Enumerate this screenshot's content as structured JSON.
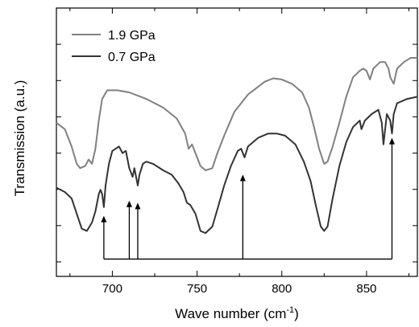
{
  "chart_data": {
    "type": "line",
    "xlabel": "Wave number (cm",
    "xlabel_sup": "-1",
    "xlabel_end": ")",
    "ylabel": "Transmission (a.u.)",
    "xlim": [
      667,
      880
    ],
    "ylim": [
      0,
      1
    ],
    "x_ticks": [
      700,
      750,
      800,
      850
    ],
    "x_tick_labels": [
      "700",
      "750",
      "800",
      "850"
    ],
    "y_ticks_unlabeled": true,
    "legend_position": "top-left",
    "series": [
      {
        "name": "1.9 GPa",
        "color": "#808080",
        "points": [
          [
            667,
            0.55
          ],
          [
            672,
            0.52
          ],
          [
            676,
            0.44
          ],
          [
            679,
            0.36
          ],
          [
            681,
            0.34
          ],
          [
            684,
            0.35
          ],
          [
            686,
            0.38
          ],
          [
            688,
            0.36
          ],
          [
            690,
            0.43
          ],
          [
            692,
            0.56
          ],
          [
            694,
            0.66
          ],
          [
            697,
            0.7
          ],
          [
            703,
            0.7
          ],
          [
            710,
            0.69
          ],
          [
            720,
            0.66
          ],
          [
            730,
            0.62
          ],
          [
            738,
            0.57
          ],
          [
            743,
            0.5
          ],
          [
            745,
            0.43
          ],
          [
            747,
            0.45
          ],
          [
            749,
            0.41
          ],
          [
            752,
            0.35
          ],
          [
            755,
            0.33
          ],
          [
            759,
            0.34
          ],
          [
            762,
            0.41
          ],
          [
            766,
            0.49
          ],
          [
            772,
            0.6
          ],
          [
            780,
            0.68
          ],
          [
            790,
            0.74
          ],
          [
            795,
            0.755
          ],
          [
            800,
            0.75
          ],
          [
            806,
            0.73
          ],
          [
            812,
            0.69
          ],
          [
            816,
            0.62
          ],
          [
            819,
            0.53
          ],
          [
            822,
            0.43
          ],
          [
            825,
            0.36
          ],
          [
            827,
            0.37
          ],
          [
            830,
            0.44
          ],
          [
            834,
            0.55
          ],
          [
            838,
            0.67
          ],
          [
            842,
            0.76
          ],
          [
            846,
            0.79
          ],
          [
            848,
            0.8
          ],
          [
            850,
            0.79
          ],
          [
            852,
            0.75
          ],
          [
            854,
            0.8
          ],
          [
            858,
            0.83
          ],
          [
            861,
            0.83
          ],
          [
            863,
            0.8
          ],
          [
            864,
            0.76
          ],
          [
            866,
            0.73
          ],
          [
            868,
            0.8
          ],
          [
            872,
            0.83
          ],
          [
            876,
            0.85
          ],
          [
            880,
            0.85
          ]
        ]
      },
      {
        "name": "0.7 GPa",
        "color": "#333333",
        "points": [
          [
            667,
            0.25
          ],
          [
            672,
            0.23
          ],
          [
            676,
            0.2
          ],
          [
            679,
            0.13
          ],
          [
            682,
            0.06
          ],
          [
            685,
            0.05
          ],
          [
            688,
            0.09
          ],
          [
            690,
            0.14
          ],
          [
            692,
            0.22
          ],
          [
            693,
            0.24
          ],
          [
            694,
            0.22
          ],
          [
            695,
            0.16
          ],
          [
            696,
            0.26
          ],
          [
            698,
            0.36
          ],
          [
            700,
            0.42
          ],
          [
            704,
            0.44
          ],
          [
            706,
            0.41
          ],
          [
            708,
            0.42
          ],
          [
            710,
            0.34
          ],
          [
            712,
            0.3
          ],
          [
            713,
            0.34
          ],
          [
            715,
            0.26
          ],
          [
            716,
            0.31
          ],
          [
            718,
            0.36
          ],
          [
            720,
            0.37
          ],
          [
            724,
            0.36
          ],
          [
            730,
            0.33
          ],
          [
            735,
            0.31
          ],
          [
            739,
            0.27
          ],
          [
            742,
            0.23
          ],
          [
            744,
            0.18
          ],
          [
            746,
            0.17
          ],
          [
            749,
            0.13
          ],
          [
            752,
            0.05
          ],
          [
            755,
            0.04
          ],
          [
            759,
            0.07
          ],
          [
            762,
            0.15
          ],
          [
            766,
            0.26
          ],
          [
            770,
            0.35
          ],
          [
            774,
            0.42
          ],
          [
            776,
            0.43
          ],
          [
            778,
            0.39
          ],
          [
            780,
            0.44
          ],
          [
            786,
            0.48
          ],
          [
            792,
            0.5
          ],
          [
            797,
            0.5
          ],
          [
            802,
            0.49
          ],
          [
            808,
            0.45
          ],
          [
            813,
            0.37
          ],
          [
            817,
            0.28
          ],
          [
            820,
            0.17
          ],
          [
            823,
            0.07
          ],
          [
            825,
            0.05
          ],
          [
            827,
            0.07
          ],
          [
            830,
            0.2
          ],
          [
            834,
            0.35
          ],
          [
            838,
            0.46
          ],
          [
            842,
            0.53
          ],
          [
            846,
            0.56
          ],
          [
            847,
            0.52
          ],
          [
            849,
            0.56
          ],
          [
            853,
            0.59
          ],
          [
            857,
            0.61
          ],
          [
            859,
            0.55
          ],
          [
            860,
            0.45
          ],
          [
            862,
            0.59
          ],
          [
            864,
            0.56
          ],
          [
            865,
            0.5
          ],
          [
            866,
            0.59
          ],
          [
            868,
            0.64
          ],
          [
            874,
            0.66
          ],
          [
            880,
            0.67
          ]
        ]
      }
    ],
    "arrows": [
      {
        "x": 695,
        "y_tip": 0.12
      },
      {
        "x": 710,
        "y_tip": 0.19
      },
      {
        "x": 715,
        "y_tip": 0.18
      },
      {
        "x": 777,
        "y_tip": 0.31
      },
      {
        "x": 865,
        "y_tip": 0.48
      }
    ],
    "arrow_baseline": -0.08
  }
}
